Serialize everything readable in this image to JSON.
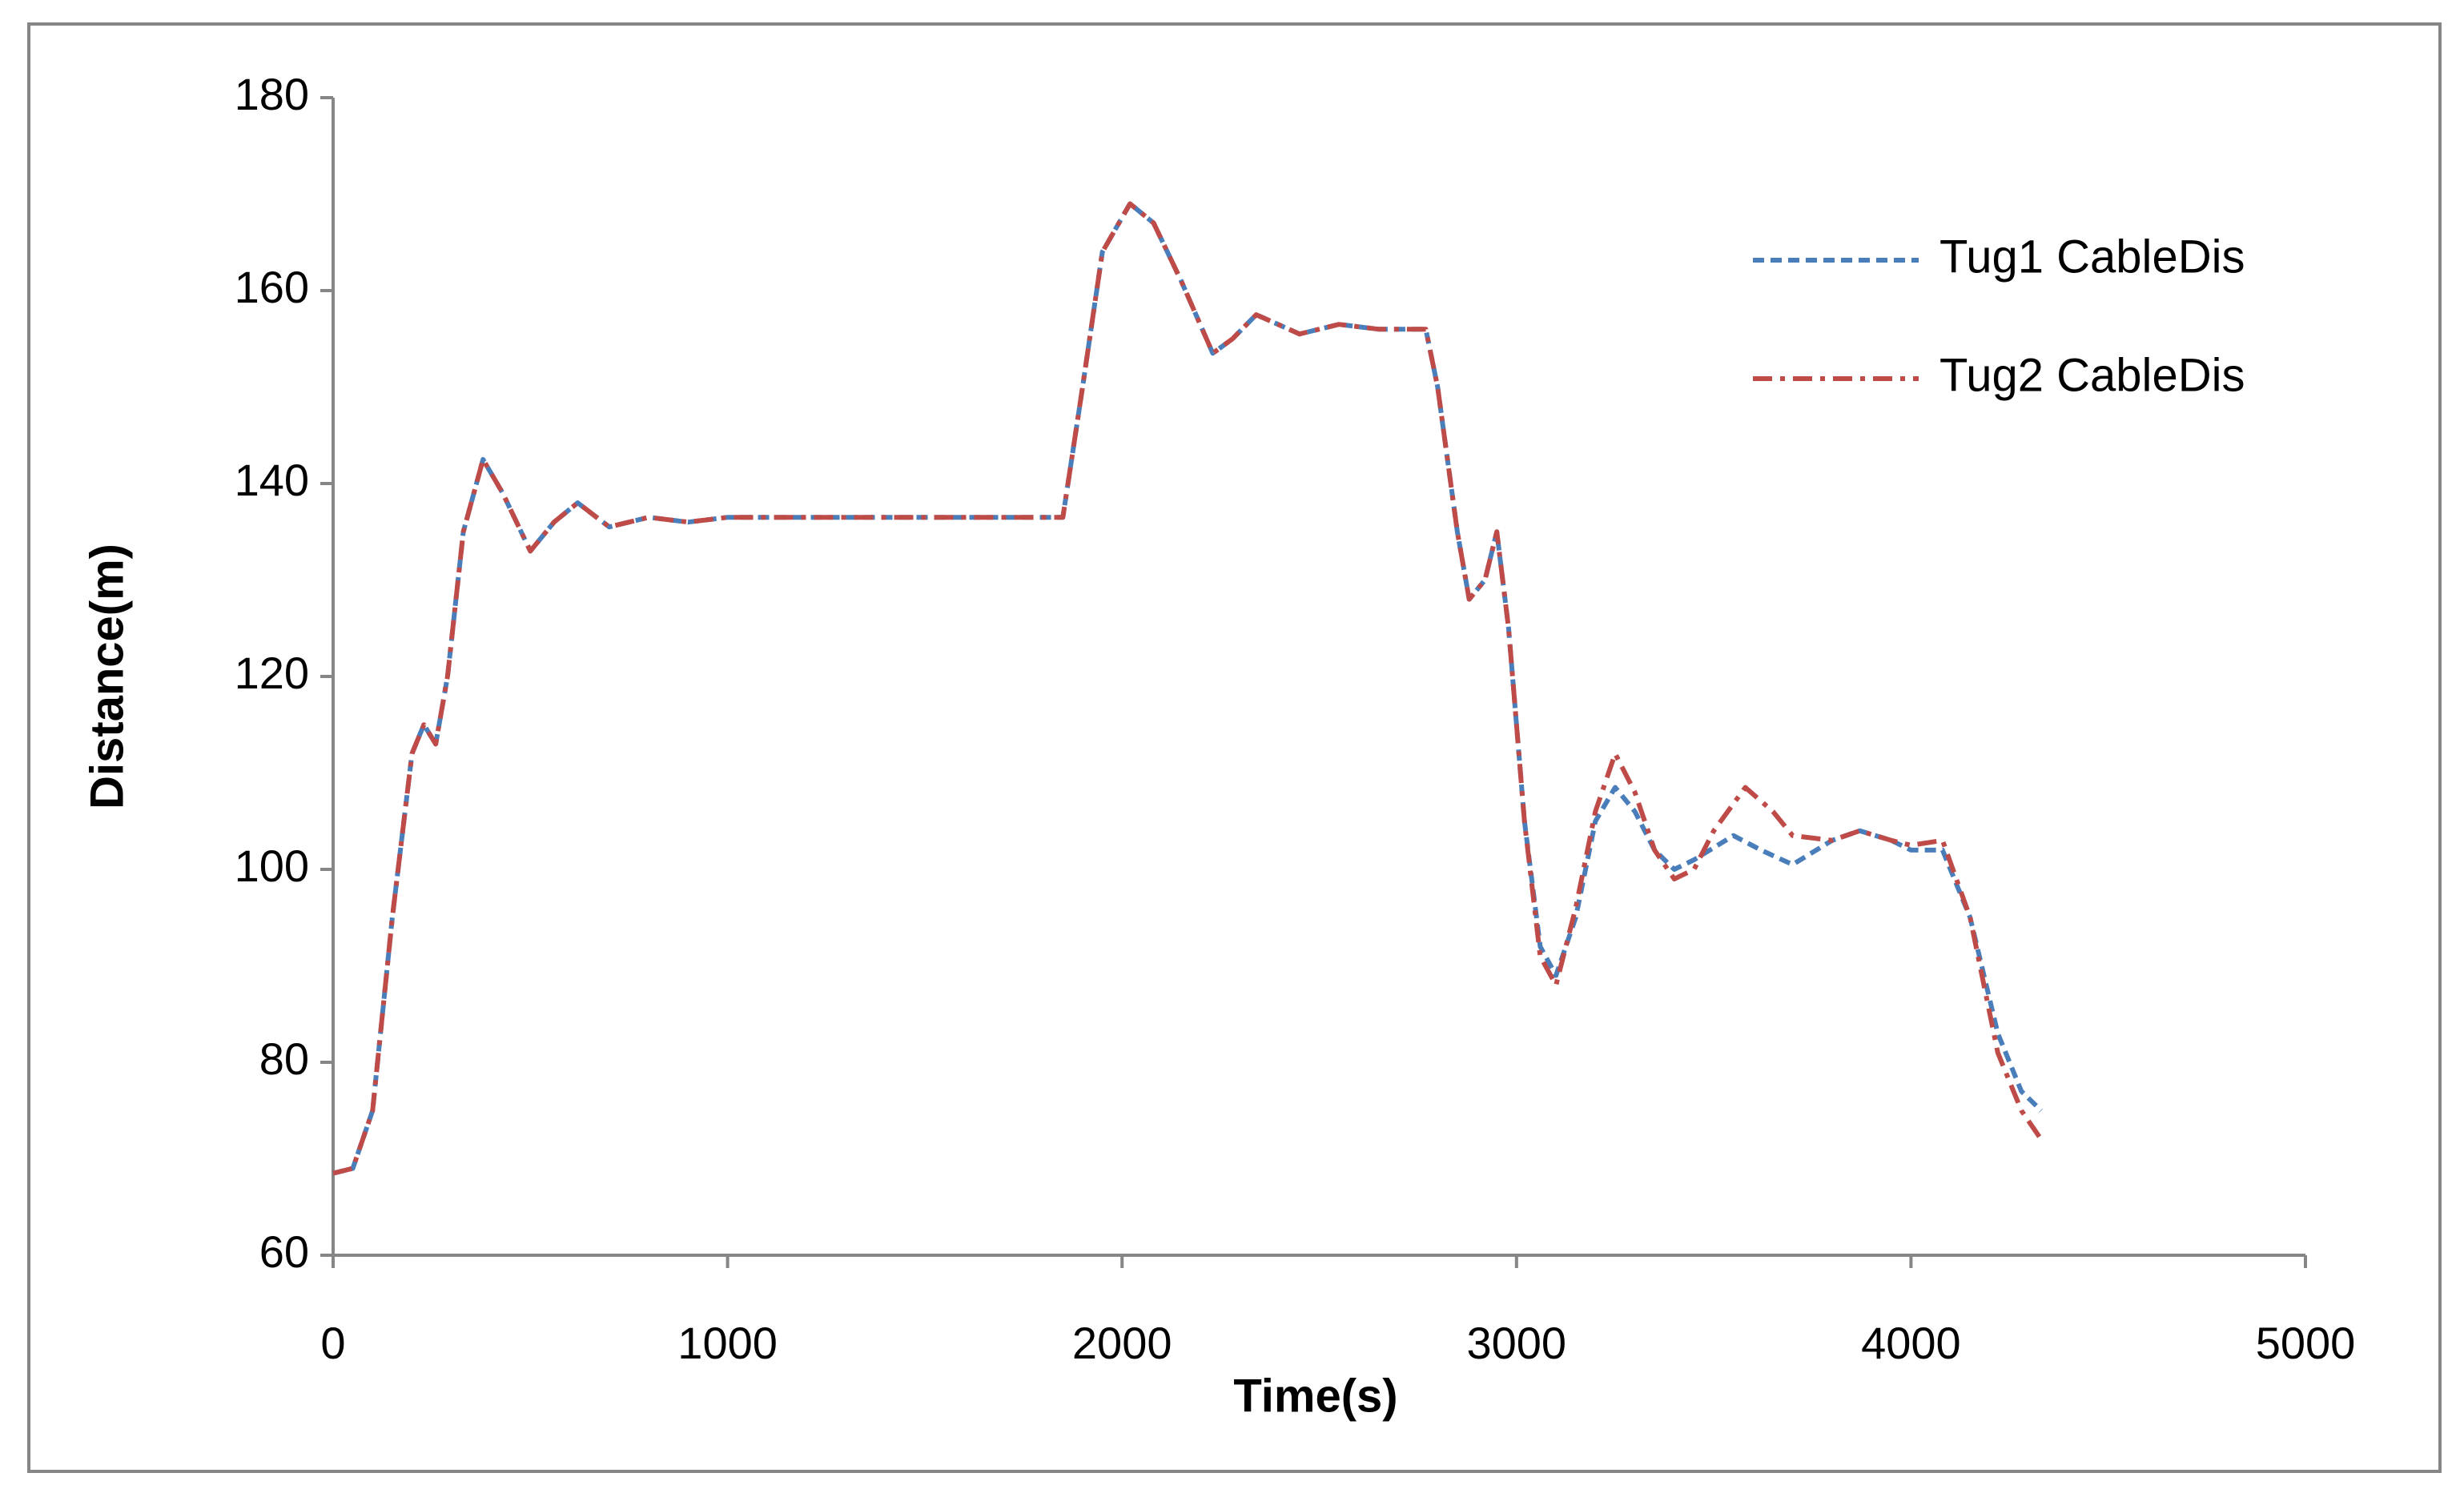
{
  "chart_data": {
    "type": "line",
    "xlabel": "Time(s)",
    "ylabel": "Distance(m)",
    "xlim": [
      0,
      5000
    ],
    "xticks": [
      0,
      1000,
      2000,
      3000,
      4000,
      5000
    ],
    "ylim": [
      60,
      180
    ],
    "yticks": [
      60,
      80,
      100,
      120,
      140,
      160,
      180
    ],
    "grid": false,
    "legend": "upper right",
    "series": [
      {
        "name": "Tug1 CableDis",
        "color": "#4a7ebb",
        "dash": "dashed",
        "x": [
          0,
          50,
          100,
          150,
          200,
          230,
          260,
          290,
          330,
          380,
          430,
          500,
          560,
          620,
          700,
          800,
          900,
          1000,
          1200,
          1400,
          1600,
          1850,
          1900,
          1950,
          2020,
          2080,
          2150,
          2230,
          2280,
          2340,
          2450,
          2550,
          2650,
          2770,
          2800,
          2850,
          2880,
          2920,
          2950,
          2980,
          3020,
          3060,
          3100,
          3150,
          3200,
          3250,
          3300,
          3350,
          3400,
          3450,
          3550,
          3620,
          3700,
          3800,
          3870,
          3950,
          4000,
          4080,
          4150,
          4220,
          4280,
          4330
        ],
        "values": [
          68.5,
          69,
          75,
          95,
          112,
          115,
          113,
          120,
          135,
          142.5,
          139,
          133,
          136,
          138,
          135.5,
          136.5,
          136,
          136.5,
          136.5,
          136.5,
          136.5,
          136.5,
          150,
          164,
          169,
          167,
          161,
          153.5,
          155,
          157.5,
          155.5,
          156.5,
          156,
          156,
          150,
          135,
          128,
          130,
          135,
          125,
          105,
          92,
          89,
          95,
          105,
          108.5,
          106,
          102,
          100,
          101,
          103.5,
          102,
          100.5,
          103,
          104,
          103,
          102,
          102,
          95,
          83,
          77,
          75
        ]
      },
      {
        "name": "Tug2 CableDis",
        "color": "#be4b48",
        "dash": "dashdot",
        "x": [
          0,
          50,
          100,
          150,
          200,
          230,
          260,
          290,
          330,
          380,
          430,
          500,
          560,
          620,
          700,
          800,
          900,
          1000,
          1200,
          1400,
          1600,
          1850,
          1900,
          1950,
          2020,
          2080,
          2150,
          2230,
          2280,
          2340,
          2450,
          2550,
          2650,
          2770,
          2800,
          2850,
          2880,
          2920,
          2950,
          2980,
          3020,
          3060,
          3100,
          3150,
          3200,
          3250,
          3300,
          3350,
          3400,
          3450,
          3500,
          3580,
          3650,
          3700,
          3800,
          3870,
          3950,
          4000,
          4080,
          4150,
          4220,
          4280,
          4330
        ],
        "values": [
          68.5,
          69,
          75,
          95,
          112,
          115,
          113,
          120,
          135,
          142.5,
          139,
          133,
          136,
          138,
          135.5,
          136.5,
          136,
          136.5,
          136.5,
          136.5,
          136.5,
          136.5,
          150,
          164,
          169,
          167,
          161,
          153.5,
          155,
          157.5,
          155.5,
          156.5,
          156,
          156,
          150,
          135,
          128,
          130,
          135,
          125,
          105,
          91,
          88,
          96,
          106,
          112,
          108,
          102,
          99,
          100,
          104,
          108.5,
          106,
          103.5,
          103,
          104,
          103,
          102.5,
          103,
          95,
          81,
          75,
          72
        ]
      }
    ]
  }
}
